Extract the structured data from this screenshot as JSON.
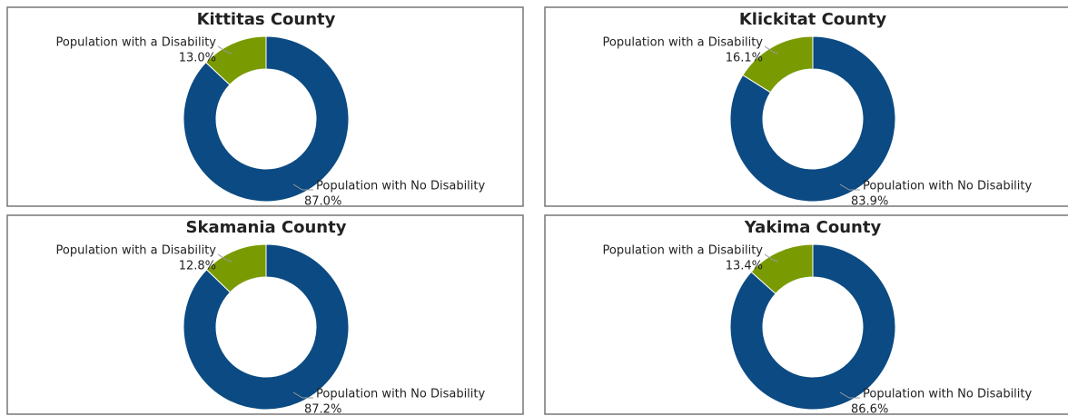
{
  "chart_data": [
    {
      "type": "pie",
      "title": "Kittitas County",
      "categories": [
        "Population with a Disability",
        "Population with No Disability"
      ],
      "values": [
        13.0,
        87.0
      ],
      "value_labels": [
        "13.0%",
        "87.0%"
      ],
      "colors": [
        "#7a9a01",
        "#0b4a82"
      ]
    },
    {
      "type": "pie",
      "title": "Klickitat County",
      "categories": [
        "Population with a Disability",
        "Population with No Disability"
      ],
      "values": [
        16.1,
        83.9
      ],
      "value_labels": [
        "16.1%",
        "83.9%"
      ],
      "colors": [
        "#7a9a01",
        "#0b4a82"
      ]
    },
    {
      "type": "pie",
      "title": "Skamania County",
      "categories": [
        "Population with a Disability",
        "Population with No Disability"
      ],
      "values": [
        12.8,
        87.2
      ],
      "value_labels": [
        "12.8%",
        "87.2%"
      ],
      "colors": [
        "#7a9a01",
        "#0b4a82"
      ]
    },
    {
      "type": "pie",
      "title": "Yakima County",
      "categories": [
        "Population with a Disability",
        "Population with No Disability"
      ],
      "values": [
        13.4,
        86.6
      ],
      "value_labels": [
        "13.4%",
        "86.6%"
      ],
      "colors": [
        "#7a9a01",
        "#0b4a82"
      ]
    }
  ]
}
